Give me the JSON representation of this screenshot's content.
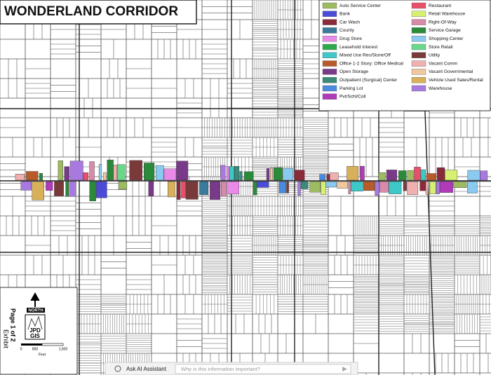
{
  "title": "WONDERLAND CORRIDOR",
  "legend": {
    "items": [
      {
        "label": "Auto Service Center",
        "color": "#9dbb61"
      },
      {
        "label": "Bank",
        "color": "#4b4bd8"
      },
      {
        "label": "Car Wash",
        "color": "#8b2a3a"
      },
      {
        "label": "County",
        "color": "#3a7a9a"
      },
      {
        "label": "Drug Store",
        "color": "#e88be8"
      },
      {
        "label": "Leasehold Interest",
        "color": "#2faa4a"
      },
      {
        "label": "Mixed Use Res/Store/Off",
        "color": "#3fc8c8"
      },
      {
        "label": "Office 1-2 Story: Office Medical",
        "color": "#b85a2a"
      },
      {
        "label": "Open Storage",
        "color": "#7a3a8a"
      },
      {
        "label": "Outpatient (Surgical) Center",
        "color": "#3a8a7a"
      },
      {
        "label": "Parking Lot",
        "color": "#4a8adf"
      },
      {
        "label": "Pvt/Schl/Coll",
        "color": "#b03ab8"
      },
      {
        "label": "Restaurant",
        "color": "#e8506a"
      },
      {
        "label": "Retail Warehouse",
        "color": "#d8f070"
      },
      {
        "label": "Right-Of-Way",
        "color": "#d88aa8"
      },
      {
        "label": "Service Garage",
        "color": "#2a8a3a"
      },
      {
        "label": "Shopping  Center",
        "color": "#8acaf0"
      },
      {
        "label": "Store Retail",
        "color": "#6ad88a"
      },
      {
        "label": "Utility",
        "color": "#7a3a3a"
      },
      {
        "label": "Vacant Comm",
        "color": "#f0b0b0"
      },
      {
        "label": "Vacant Governmental",
        "color": "#f0c8a0"
      },
      {
        "label": "Vehicle Used Sales/Rental",
        "color": "#d8b05a"
      },
      {
        "label": "Warehouse",
        "color": "#a87ae0"
      }
    ]
  },
  "north": "NORTH",
  "logo": [
    "JPD",
    "GIS"
  ],
  "scale": {
    "ticks": [
      "0",
      "800",
      "1,600"
    ],
    "unit": "Feet"
  },
  "exhibit": "Exhibit",
  "page": "Page 1 of 2",
  "assistant": {
    "button": "Ask AI Assistant",
    "placeholder": "Why is this information important?"
  }
}
